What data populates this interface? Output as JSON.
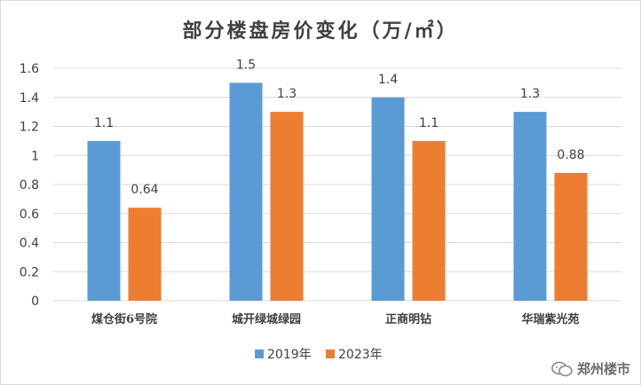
{
  "chart_data": {
    "type": "bar",
    "title": "部分楼盘房价变化（万/㎡）",
    "categories": [
      "煤仓街6号院",
      "城开绿城绿园",
      "正商明钻",
      "华瑞紫光苑"
    ],
    "series": [
      {
        "name": "2019年",
        "values": [
          1.1,
          1.5,
          1.4,
          1.3
        ],
        "labels": [
          "1.1",
          "1.5",
          "1.4",
          "1.3"
        ],
        "color": "#5b9bd5"
      },
      {
        "name": "2023年",
        "values": [
          0.64,
          1.3,
          1.1,
          0.88
        ],
        "labels": [
          "0.64",
          "1.3",
          "1.1",
          "0.88"
        ],
        "color": "#ed7d31"
      }
    ],
    "ylim": [
      0,
      1.6
    ],
    "yticks": [
      "0",
      "0.2",
      "0.4",
      "0.6",
      "0.8",
      "1",
      "1.2",
      "1.4",
      "1.6"
    ],
    "grid": true,
    "legend": "bottom"
  },
  "watermark": {
    "text": "郑州楼市",
    "icon": "wechat-icon"
  }
}
